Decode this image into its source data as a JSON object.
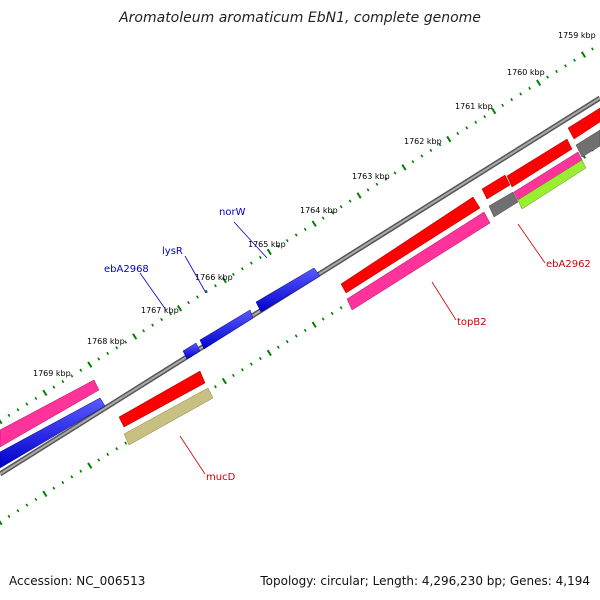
{
  "title": "Aromatoleum aromaticum EbN1, complete genome",
  "footer": {
    "accession": "Accession: NC_006513",
    "summary": "Topology: circular; Length: 4,296,230 bp; Genes: 4,194"
  },
  "ticks": [
    {
      "label": "1759 kbp"
    },
    {
      "label": "1760 kbp"
    },
    {
      "label": "1761 kbp"
    },
    {
      "label": "1762 kbp"
    },
    {
      "label": "1763 kbp"
    },
    {
      "label": "1764 kbp"
    },
    {
      "label": "1765 kbp"
    },
    {
      "label": "1766 kbp"
    },
    {
      "label": "1767 kbp"
    },
    {
      "label": "1768 kbp"
    },
    {
      "label": "1769 kbp"
    }
  ],
  "genes": {
    "norW": "norW",
    "lysR": "lysR",
    "ebA2968": "ebA2968",
    "ebA2962": "ebA2962",
    "topB2": "topB2",
    "mucD": "mucD"
  },
  "colors": {
    "backbone": "#808080",
    "cds": "#ff0000",
    "gene": "#ff3399",
    "blue_feature": "#0000ff",
    "grey_feature": "#707070",
    "olive_feature": "#c8c080",
    "lime_feature": "#99ee33",
    "tick": "#008000",
    "label_forward": "#0000cc",
    "label_reverse": "#cc0000"
  }
}
